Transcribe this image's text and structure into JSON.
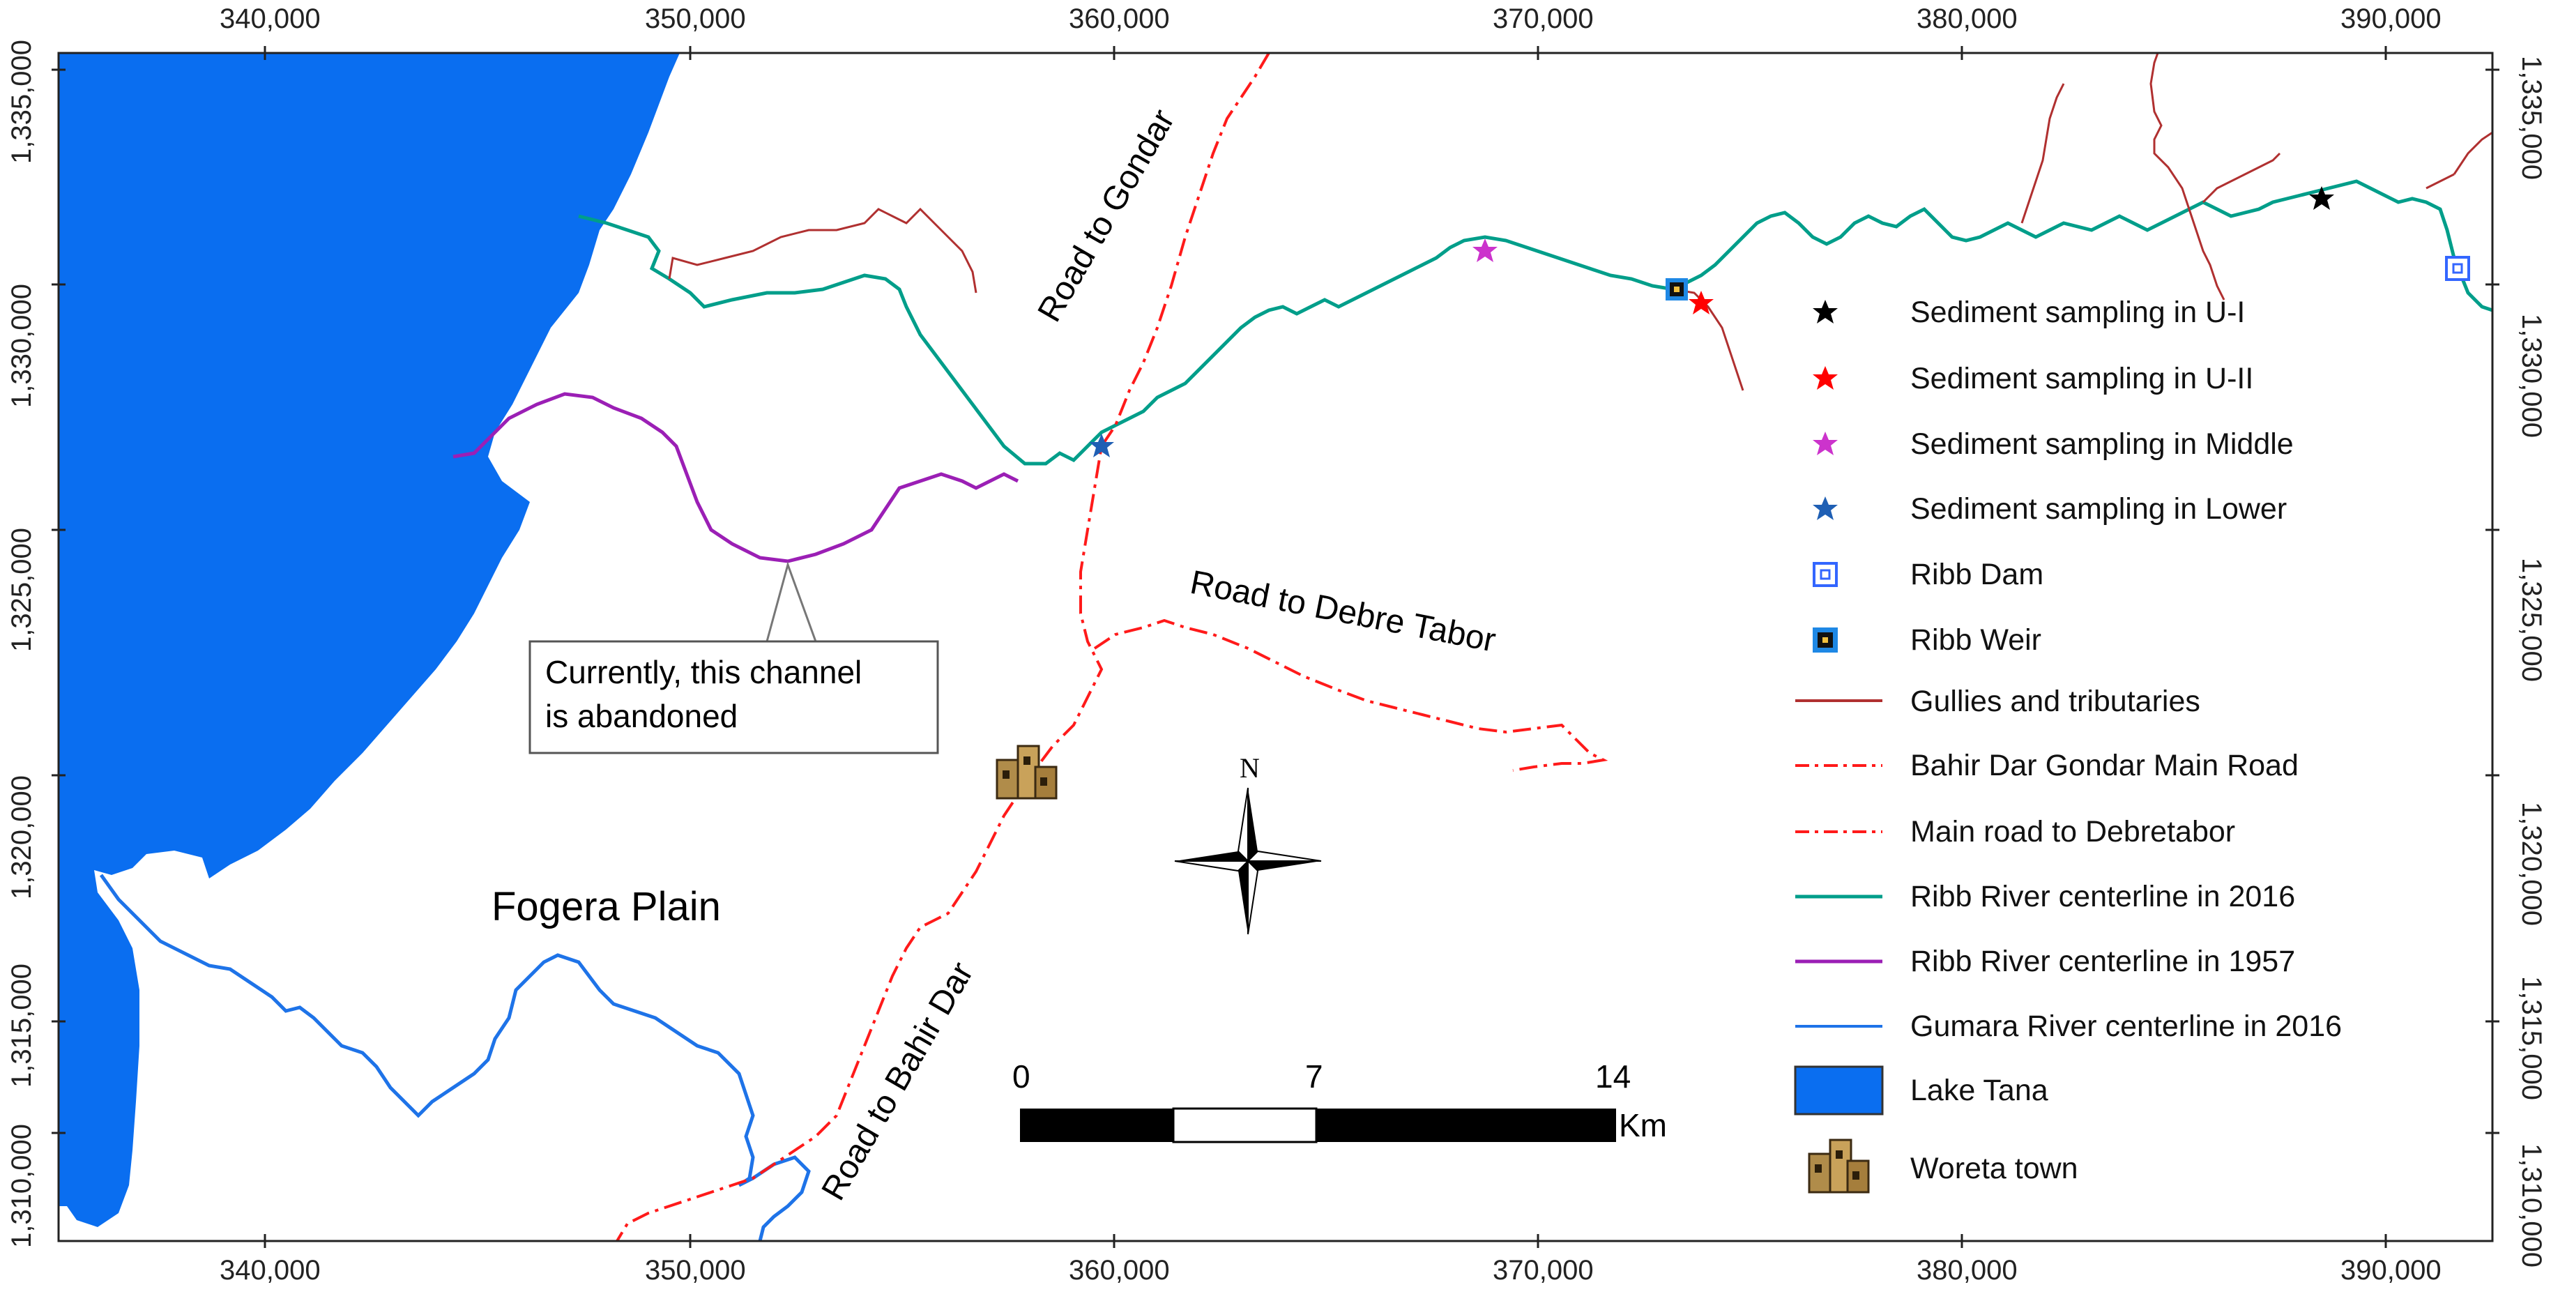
{
  "axes": {
    "x_ticks": [
      "340,000",
      "350,000",
      "360,000",
      "370,000",
      "380,000",
      "390,000"
    ],
    "y_ticks": [
      "1,335,000",
      "1,330,000",
      "1,325,000",
      "1,320,000",
      "1,315,000",
      "1,310,000"
    ]
  },
  "labels": {
    "fogera_plain": "Fogera Plain",
    "road_gondar": "Road to Gondar",
    "road_debre_tabor": "Road to Debre Tabor",
    "road_bahir_dar": "Road to Bahir Dar",
    "callout_line1": "Currently, this channel",
    "callout_line2": "is abandoned"
  },
  "north_arrow": {
    "label": "N"
  },
  "scale_bar": {
    "ticks": [
      "0",
      "7",
      "14"
    ],
    "unit": "Km"
  },
  "legend": {
    "items": [
      {
        "label": "Sediment sampling in U-I",
        "symbol": "star",
        "color": "#000000"
      },
      {
        "label": "Sediment sampling in U-II",
        "symbol": "star",
        "color": "#ff0000"
      },
      {
        "label": "Sediment sampling in Middle",
        "symbol": "star",
        "color": "#cc33cc"
      },
      {
        "label": "Sediment sampling in Lower",
        "symbol": "star",
        "color": "#1f5fb4"
      },
      {
        "label": "Ribb Dam",
        "symbol": "dam-square",
        "color": "#3366ff"
      },
      {
        "label": "Ribb Weir",
        "symbol": "weir-square",
        "color": "#1e88e5"
      },
      {
        "label": "Gullies and tributaries",
        "symbol": "line",
        "color": "#b03030"
      },
      {
        "label": "Bahir Dar  Gondar Main Road",
        "symbol": "dashdot-line",
        "color": "#ff1a1a"
      },
      {
        "label": "Main road to Debretabor",
        "symbol": "dashdot-line",
        "color": "#ff1a1a"
      },
      {
        "label": "Ribb River centerline in 2016",
        "symbol": "line",
        "color": "#009e8a"
      },
      {
        "label": "Ribb River centerline in 1957",
        "symbol": "line",
        "color": "#9b1fb5"
      },
      {
        "label": "Gumara River centerline in 2016",
        "symbol": "line",
        "color": "#1e73e8"
      },
      {
        "label": "Lake Tana",
        "symbol": "fill",
        "color": "#0a6ef0"
      },
      {
        "label": "Woreta town",
        "symbol": "building-icon",
        "color": "#8a6a2e"
      }
    ]
  },
  "colors": {
    "lake": "#0a6ef0",
    "ribb_2016": "#009e8a",
    "ribb_1957": "#9b1fb5",
    "gumara": "#1e73e8",
    "gullies": "#b03030",
    "road": "#ff1a1a"
  }
}
